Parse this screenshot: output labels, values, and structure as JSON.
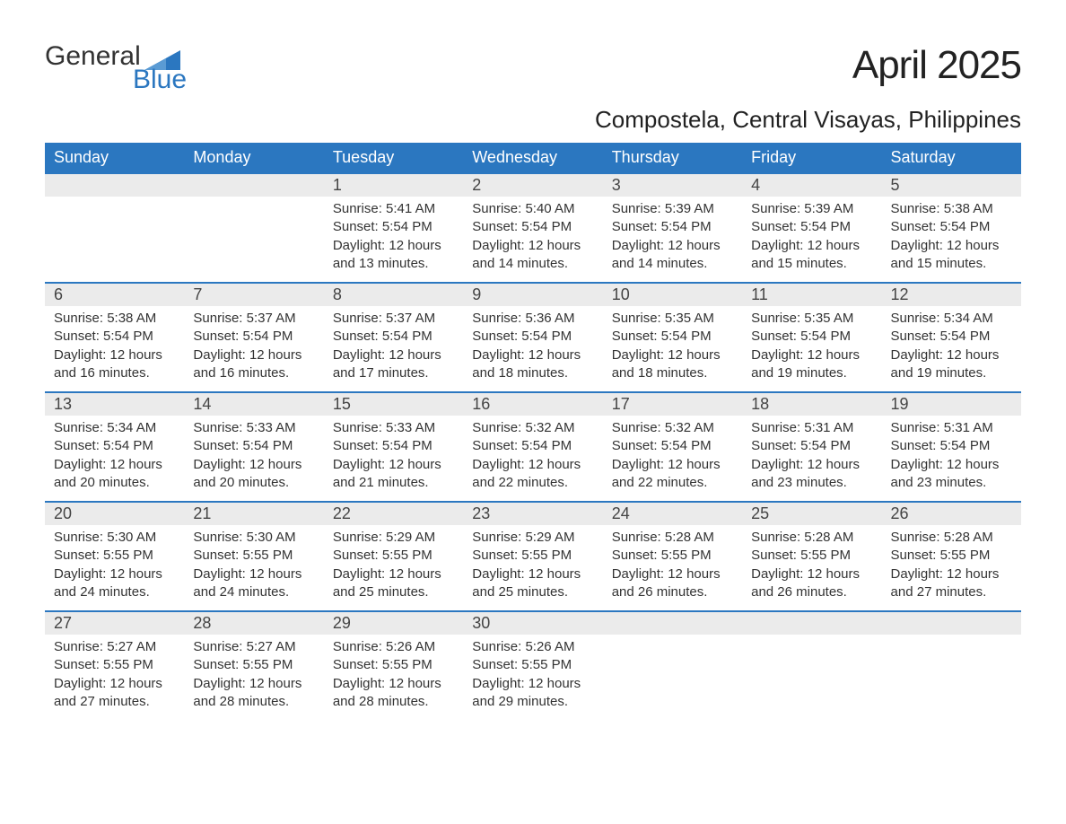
{
  "logo": {
    "text_top": "General",
    "text_bottom": "Blue",
    "flag_color": "#2b77c0"
  },
  "title": "April 2025",
  "subtitle": "Compostela, Central Visayas, Philippines",
  "colors": {
    "header_bg": "#2b77c0",
    "header_text": "#ffffff",
    "daynum_bg": "#ebebeb",
    "row_border": "#2b77c0",
    "text": "#333333",
    "background": "#ffffff"
  },
  "day_headers": [
    "Sunday",
    "Monday",
    "Tuesday",
    "Wednesday",
    "Thursday",
    "Friday",
    "Saturday"
  ],
  "weeks": [
    [
      null,
      null,
      {
        "n": "1",
        "sunrise": "Sunrise: 5:41 AM",
        "sunset": "Sunset: 5:54 PM",
        "daylight1": "Daylight: 12 hours",
        "daylight2": "and 13 minutes."
      },
      {
        "n": "2",
        "sunrise": "Sunrise: 5:40 AM",
        "sunset": "Sunset: 5:54 PM",
        "daylight1": "Daylight: 12 hours",
        "daylight2": "and 14 minutes."
      },
      {
        "n": "3",
        "sunrise": "Sunrise: 5:39 AM",
        "sunset": "Sunset: 5:54 PM",
        "daylight1": "Daylight: 12 hours",
        "daylight2": "and 14 minutes."
      },
      {
        "n": "4",
        "sunrise": "Sunrise: 5:39 AM",
        "sunset": "Sunset: 5:54 PM",
        "daylight1": "Daylight: 12 hours",
        "daylight2": "and 15 minutes."
      },
      {
        "n": "5",
        "sunrise": "Sunrise: 5:38 AM",
        "sunset": "Sunset: 5:54 PM",
        "daylight1": "Daylight: 12 hours",
        "daylight2": "and 15 minutes."
      }
    ],
    [
      {
        "n": "6",
        "sunrise": "Sunrise: 5:38 AM",
        "sunset": "Sunset: 5:54 PM",
        "daylight1": "Daylight: 12 hours",
        "daylight2": "and 16 minutes."
      },
      {
        "n": "7",
        "sunrise": "Sunrise: 5:37 AM",
        "sunset": "Sunset: 5:54 PM",
        "daylight1": "Daylight: 12 hours",
        "daylight2": "and 16 minutes."
      },
      {
        "n": "8",
        "sunrise": "Sunrise: 5:37 AM",
        "sunset": "Sunset: 5:54 PM",
        "daylight1": "Daylight: 12 hours",
        "daylight2": "and 17 minutes."
      },
      {
        "n": "9",
        "sunrise": "Sunrise: 5:36 AM",
        "sunset": "Sunset: 5:54 PM",
        "daylight1": "Daylight: 12 hours",
        "daylight2": "and 18 minutes."
      },
      {
        "n": "10",
        "sunrise": "Sunrise: 5:35 AM",
        "sunset": "Sunset: 5:54 PM",
        "daylight1": "Daylight: 12 hours",
        "daylight2": "and 18 minutes."
      },
      {
        "n": "11",
        "sunrise": "Sunrise: 5:35 AM",
        "sunset": "Sunset: 5:54 PM",
        "daylight1": "Daylight: 12 hours",
        "daylight2": "and 19 minutes."
      },
      {
        "n": "12",
        "sunrise": "Sunrise: 5:34 AM",
        "sunset": "Sunset: 5:54 PM",
        "daylight1": "Daylight: 12 hours",
        "daylight2": "and 19 minutes."
      }
    ],
    [
      {
        "n": "13",
        "sunrise": "Sunrise: 5:34 AM",
        "sunset": "Sunset: 5:54 PM",
        "daylight1": "Daylight: 12 hours",
        "daylight2": "and 20 minutes."
      },
      {
        "n": "14",
        "sunrise": "Sunrise: 5:33 AM",
        "sunset": "Sunset: 5:54 PM",
        "daylight1": "Daylight: 12 hours",
        "daylight2": "and 20 minutes."
      },
      {
        "n": "15",
        "sunrise": "Sunrise: 5:33 AM",
        "sunset": "Sunset: 5:54 PM",
        "daylight1": "Daylight: 12 hours",
        "daylight2": "and 21 minutes."
      },
      {
        "n": "16",
        "sunrise": "Sunrise: 5:32 AM",
        "sunset": "Sunset: 5:54 PM",
        "daylight1": "Daylight: 12 hours",
        "daylight2": "and 22 minutes."
      },
      {
        "n": "17",
        "sunrise": "Sunrise: 5:32 AM",
        "sunset": "Sunset: 5:54 PM",
        "daylight1": "Daylight: 12 hours",
        "daylight2": "and 22 minutes."
      },
      {
        "n": "18",
        "sunrise": "Sunrise: 5:31 AM",
        "sunset": "Sunset: 5:54 PM",
        "daylight1": "Daylight: 12 hours",
        "daylight2": "and 23 minutes."
      },
      {
        "n": "19",
        "sunrise": "Sunrise: 5:31 AM",
        "sunset": "Sunset: 5:54 PM",
        "daylight1": "Daylight: 12 hours",
        "daylight2": "and 23 minutes."
      }
    ],
    [
      {
        "n": "20",
        "sunrise": "Sunrise: 5:30 AM",
        "sunset": "Sunset: 5:55 PM",
        "daylight1": "Daylight: 12 hours",
        "daylight2": "and 24 minutes."
      },
      {
        "n": "21",
        "sunrise": "Sunrise: 5:30 AM",
        "sunset": "Sunset: 5:55 PM",
        "daylight1": "Daylight: 12 hours",
        "daylight2": "and 24 minutes."
      },
      {
        "n": "22",
        "sunrise": "Sunrise: 5:29 AM",
        "sunset": "Sunset: 5:55 PM",
        "daylight1": "Daylight: 12 hours",
        "daylight2": "and 25 minutes."
      },
      {
        "n": "23",
        "sunrise": "Sunrise: 5:29 AM",
        "sunset": "Sunset: 5:55 PM",
        "daylight1": "Daylight: 12 hours",
        "daylight2": "and 25 minutes."
      },
      {
        "n": "24",
        "sunrise": "Sunrise: 5:28 AM",
        "sunset": "Sunset: 5:55 PM",
        "daylight1": "Daylight: 12 hours",
        "daylight2": "and 26 minutes."
      },
      {
        "n": "25",
        "sunrise": "Sunrise: 5:28 AM",
        "sunset": "Sunset: 5:55 PM",
        "daylight1": "Daylight: 12 hours",
        "daylight2": "and 26 minutes."
      },
      {
        "n": "26",
        "sunrise": "Sunrise: 5:28 AM",
        "sunset": "Sunset: 5:55 PM",
        "daylight1": "Daylight: 12 hours",
        "daylight2": "and 27 minutes."
      }
    ],
    [
      {
        "n": "27",
        "sunrise": "Sunrise: 5:27 AM",
        "sunset": "Sunset: 5:55 PM",
        "daylight1": "Daylight: 12 hours",
        "daylight2": "and 27 minutes."
      },
      {
        "n": "28",
        "sunrise": "Sunrise: 5:27 AM",
        "sunset": "Sunset: 5:55 PM",
        "daylight1": "Daylight: 12 hours",
        "daylight2": "and 28 minutes."
      },
      {
        "n": "29",
        "sunrise": "Sunrise: 5:26 AM",
        "sunset": "Sunset: 5:55 PM",
        "daylight1": "Daylight: 12 hours",
        "daylight2": "and 28 minutes."
      },
      {
        "n": "30",
        "sunrise": "Sunrise: 5:26 AM",
        "sunset": "Sunset: 5:55 PM",
        "daylight1": "Daylight: 12 hours",
        "daylight2": "and 29 minutes."
      },
      null,
      null,
      null
    ]
  ]
}
